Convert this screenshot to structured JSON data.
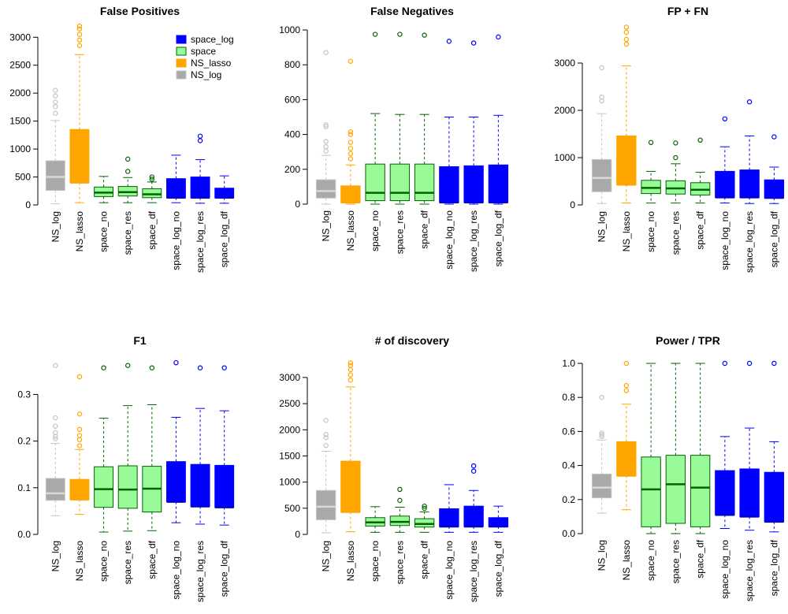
{
  "palette": {
    "NS_log": {
      "fill": "#a9a9a9",
      "line": "#c4c4c4",
      "median": "#d9d9d9"
    },
    "NS_lasso": {
      "fill": "#ffa500",
      "line": "#ffa500",
      "median": "#ffa500"
    },
    "space": {
      "fill": "#98fb98",
      "line": "#006400",
      "median": "#006400"
    },
    "space_log": {
      "fill": "#0000ff",
      "line": "#0000ff",
      "median": "#0000cc"
    }
  },
  "legend": [
    {
      "label": "space_log",
      "group": "space_log"
    },
    {
      "label": "space",
      "group": "space"
    },
    {
      "label": "NS_lasso",
      "group": "NS_lasso"
    },
    {
      "label": "NS_log",
      "group": "NS_log"
    }
  ],
  "chart_data": [
    {
      "type": "boxplot",
      "title": "False Positives",
      "categories": [
        "NS_log",
        "NS_lasso",
        "space_no",
        "space_res",
        "space_df",
        "space_log_no",
        "space_log_res",
        "space_log_df"
      ],
      "groups": [
        "NS_log",
        "NS_lasso",
        "space",
        "space",
        "space",
        "space_log",
        "space_log",
        "space_log"
      ],
      "ylim": [
        0,
        3300
      ],
      "yticks": [
        0,
        500,
        1000,
        1500,
        2000,
        2500,
        3000
      ],
      "tick_labels": [
        "0",
        "500",
        "1000",
        "1500",
        "2000",
        "2500",
        "3000"
      ],
      "boxes": [
        {
          "lo": 20,
          "q1": 260,
          "med": 500,
          "q3": 790,
          "hi": 1510,
          "out": [
            1640,
            1760,
            1840,
            1950,
            2050
          ]
        },
        {
          "lo": 40,
          "q1": 400,
          "med": 400,
          "q3": 1350,
          "hi": 2690,
          "out": [
            2850,
            2950,
            3050,
            3150,
            3200
          ]
        },
        {
          "lo": 40,
          "q1": 150,
          "med": 220,
          "q3": 320,
          "hi": 510,
          "out": []
        },
        {
          "lo": 40,
          "q1": 160,
          "med": 230,
          "q3": 330,
          "hi": 490,
          "out": [
            600,
            820
          ]
        },
        {
          "lo": 40,
          "q1": 130,
          "med": 190,
          "q3": 290,
          "hi": 410,
          "out": [
            460,
            500
          ]
        },
        {
          "lo": 40,
          "q1": 130,
          "med": 130,
          "q3": 470,
          "hi": 890,
          "out": []
        },
        {
          "lo": 30,
          "q1": 130,
          "med": 130,
          "q3": 500,
          "hi": 810,
          "out": [
            1150,
            1230
          ]
        },
        {
          "lo": 30,
          "q1": 130,
          "med": 130,
          "q3": 300,
          "hi": 520,
          "out": []
        }
      ]
    },
    {
      "type": "boxplot",
      "title": "False Negatives",
      "categories": [
        "NS_log",
        "NS_lasso",
        "space_no",
        "space_res",
        "space_df",
        "space_log_no",
        "space_log_res",
        "space_log_df"
      ],
      "groups": [
        "NS_log",
        "NS_lasso",
        "space",
        "space",
        "space",
        "space_log",
        "space_log",
        "space_log"
      ],
      "ylim": [
        0,
        1000
      ],
      "yticks": [
        0,
        200,
        400,
        600,
        800,
        1000
      ],
      "tick_labels": [
        "0",
        "200",
        "400",
        "600",
        "800",
        "1000"
      ],
      "boxes": [
        {
          "lo": 0,
          "q1": 35,
          "med": 75,
          "q3": 140,
          "hi": 280,
          "out": [
            305,
            330,
            360,
            445,
            455,
            870
          ]
        },
        {
          "lo": 0,
          "q1": 10,
          "med": 10,
          "q3": 105,
          "hi": 225,
          "out": [
            260,
            290,
            320,
            355,
            400,
            415,
            820
          ]
        },
        {
          "lo": 0,
          "q1": 20,
          "med": 65,
          "q3": 230,
          "hi": 520,
          "out": [
            975
          ]
        },
        {
          "lo": 0,
          "q1": 20,
          "med": 65,
          "q3": 230,
          "hi": 515,
          "out": [
            975
          ]
        },
        {
          "lo": 0,
          "q1": 20,
          "med": 65,
          "q3": 230,
          "hi": 515,
          "out": [
            970
          ]
        },
        {
          "lo": 0,
          "q1": 10,
          "med": 10,
          "q3": 215,
          "hi": 500,
          "out": [
            935
          ]
        },
        {
          "lo": 0,
          "q1": 10,
          "med": 10,
          "q3": 220,
          "hi": 500,
          "out": [
            925
          ]
        },
        {
          "lo": 0,
          "q1": 10,
          "med": 10,
          "q3": 225,
          "hi": 510,
          "out": [
            960
          ]
        }
      ]
    },
    {
      "type": "boxplot",
      "title": "FP + FN",
      "categories": [
        "NS_log",
        "NS_lasso",
        "space_no",
        "space_res",
        "space_df",
        "space_log_no",
        "space_log_res",
        "space_log_df"
      ],
      "groups": [
        "NS_log",
        "NS_lasso",
        "space",
        "space",
        "space",
        "space_log",
        "space_log",
        "space_log"
      ],
      "ylim": [
        0,
        3700
      ],
      "yticks": [
        0,
        1000,
        2000,
        3000
      ],
      "tick_labels": [
        "0",
        "1000",
        "2000",
        "3000"
      ],
      "boxes": [
        {
          "lo": 30,
          "q1": 280,
          "med": 570,
          "q3": 960,
          "hi": 1930,
          "out": [
            2200,
            2280,
            2900
          ]
        },
        {
          "lo": 40,
          "q1": 430,
          "med": 430,
          "q3": 1460,
          "hi": 2940,
          "out": [
            3400,
            3500,
            3650,
            3760
          ]
        },
        {
          "lo": 40,
          "q1": 240,
          "med": 360,
          "q3": 520,
          "hi": 710,
          "out": [
            1320
          ]
        },
        {
          "lo": 40,
          "q1": 230,
          "med": 350,
          "q3": 510,
          "hi": 870,
          "out": [
            1000,
            1310
          ]
        },
        {
          "lo": 40,
          "q1": 210,
          "med": 320,
          "q3": 470,
          "hi": 690,
          "out": [
            1370
          ]
        },
        {
          "lo": 40,
          "q1": 160,
          "med": 160,
          "q3": 710,
          "hi": 1230,
          "out": [
            1820
          ]
        },
        {
          "lo": 30,
          "q1": 160,
          "med": 160,
          "q3": 740,
          "hi": 1460,
          "out": [
            2180
          ]
        },
        {
          "lo": 30,
          "q1": 150,
          "med": 150,
          "q3": 530,
          "hi": 800,
          "out": [
            1440
          ]
        }
      ]
    },
    {
      "type": "boxplot",
      "title": "F1",
      "categories": [
        "NS_log",
        "NS_lasso",
        "space_no",
        "space_res",
        "space_df",
        "space_log_no",
        "space_log_res",
        "space_log_df"
      ],
      "groups": [
        "NS_log",
        "NS_lasso",
        "space",
        "space",
        "space",
        "space_log",
        "space_log",
        "space_log"
      ],
      "ylim": [
        0,
        0.37
      ],
      "yticks": [
        0,
        0.1,
        0.2,
        0.3
      ],
      "tick_labels": [
        "0.0",
        "0.1",
        "0.2",
        "0.3"
      ],
      "boxes": [
        {
          "lo": 0.04,
          "q1": 0.073,
          "med": 0.088,
          "q3": 0.12,
          "hi": 0.195,
          "out": [
            0.205,
            0.21,
            0.218,
            0.232,
            0.25,
            0.362
          ]
        },
        {
          "lo": 0.043,
          "q1": 0.075,
          "med": 0.075,
          "q3": 0.118,
          "hi": 0.182,
          "out": [
            0.19,
            0.203,
            0.212,
            0.225,
            0.258,
            0.338
          ]
        },
        {
          "lo": 0.005,
          "q1": 0.058,
          "med": 0.097,
          "q3": 0.145,
          "hi": 0.249,
          "out": [
            0.357
          ]
        },
        {
          "lo": 0.007,
          "q1": 0.056,
          "med": 0.096,
          "q3": 0.147,
          "hi": 0.276,
          "out": [
            0.362
          ]
        },
        {
          "lo": 0.008,
          "q1": 0.048,
          "med": 0.098,
          "q3": 0.146,
          "hi": 0.278,
          "out": [
            0.357
          ]
        },
        {
          "lo": 0.025,
          "q1": 0.07,
          "med": 0.07,
          "q3": 0.156,
          "hi": 0.251,
          "out": [
            0.368
          ]
        },
        {
          "lo": 0.022,
          "q1": 0.06,
          "med": 0.06,
          "q3": 0.15,
          "hi": 0.27,
          "out": [
            0.357
          ]
        },
        {
          "lo": 0.02,
          "q1": 0.058,
          "med": 0.058,
          "q3": 0.148,
          "hi": 0.265,
          "out": [
            0.357
          ]
        }
      ]
    },
    {
      "type": "boxplot",
      "title": "# of discovery",
      "categories": [
        "NS_log",
        "NS_lasso",
        "space_no",
        "space_res",
        "space_df",
        "space_log_no",
        "space_log_res",
        "space_log_df"
      ],
      "groups": [
        "NS_log",
        "NS_lasso",
        "space",
        "space",
        "space",
        "space_log",
        "space_log",
        "space_log"
      ],
      "ylim": [
        0,
        3300
      ],
      "yticks": [
        0,
        500,
        1000,
        1500,
        2000,
        2500,
        3000
      ],
      "tick_labels": [
        "0",
        "500",
        "1000",
        "1500",
        "2000",
        "2500",
        "3000"
      ],
      "boxes": [
        {
          "lo": 30,
          "q1": 280,
          "med": 530,
          "q3": 840,
          "hi": 1590,
          "out": [
            1700,
            1850,
            1910,
            2180
          ]
        },
        {
          "lo": 50,
          "q1": 430,
          "med": 430,
          "q3": 1400,
          "hi": 2820,
          "out": [
            2950,
            3050,
            3150,
            3230,
            3280
          ]
        },
        {
          "lo": 40,
          "q1": 160,
          "med": 230,
          "q3": 320,
          "hi": 530,
          "out": []
        },
        {
          "lo": 40,
          "q1": 170,
          "med": 240,
          "q3": 350,
          "hi": 520,
          "out": [
            650,
            860
          ]
        },
        {
          "lo": 40,
          "q1": 140,
          "med": 200,
          "q3": 300,
          "hi": 430,
          "out": [
            500,
            540
          ]
        },
        {
          "lo": 40,
          "q1": 150,
          "med": 150,
          "q3": 490,
          "hi": 950,
          "out": []
        },
        {
          "lo": 40,
          "q1": 150,
          "med": 150,
          "q3": 540,
          "hi": 840,
          "out": [
            1210,
            1310
          ]
        },
        {
          "lo": 40,
          "q1": 150,
          "med": 150,
          "q3": 320,
          "hi": 540,
          "out": []
        }
      ]
    },
    {
      "type": "boxplot",
      "title": "Power / TPR",
      "categories": [
        "NS_log",
        "NS_lasso",
        "space_no",
        "space_res",
        "space_df",
        "space_log_no",
        "space_log_res",
        "space_log_df"
      ],
      "groups": [
        "NS_log",
        "NS_lasso",
        "space",
        "space",
        "space",
        "space_log",
        "space_log",
        "space_log"
      ],
      "ylim": [
        0,
        1.0
      ],
      "yticks": [
        0,
        0.2,
        0.4,
        0.6,
        0.8,
        1.0
      ],
      "tick_labels": [
        "0.0",
        "0.2",
        "0.4",
        "0.6",
        "0.8",
        "1.0"
      ],
      "boxes": [
        {
          "lo": 0.12,
          "q1": 0.21,
          "med": 0.27,
          "q3": 0.35,
          "hi": 0.55,
          "out": [
            0.57,
            0.58,
            0.59,
            0.8
          ]
        },
        {
          "lo": 0.14,
          "q1": 0.34,
          "med": 0.34,
          "q3": 0.54,
          "hi": 0.76,
          "out": [
            0.84,
            0.87,
            1.0
          ]
        },
        {
          "lo": 0.0,
          "q1": 0.04,
          "med": 0.26,
          "q3": 0.45,
          "hi": 1.0,
          "out": []
        },
        {
          "lo": 0.0,
          "q1": 0.06,
          "med": 0.29,
          "q3": 0.46,
          "hi": 1.0,
          "out": []
        },
        {
          "lo": 0.0,
          "q1": 0.04,
          "med": 0.27,
          "q3": 0.46,
          "hi": 1.0,
          "out": []
        },
        {
          "lo": 0.03,
          "q1": 0.11,
          "med": 0.11,
          "q3": 0.37,
          "hi": 0.57,
          "out": [
            1.0
          ]
        },
        {
          "lo": 0.02,
          "q1": 0.1,
          "med": 0.1,
          "q3": 0.38,
          "hi": 0.62,
          "out": [
            1.0
          ]
        },
        {
          "lo": 0.01,
          "q1": 0.07,
          "med": 0.07,
          "q3": 0.36,
          "hi": 0.54,
          "out": [
            1.0
          ]
        }
      ]
    }
  ]
}
